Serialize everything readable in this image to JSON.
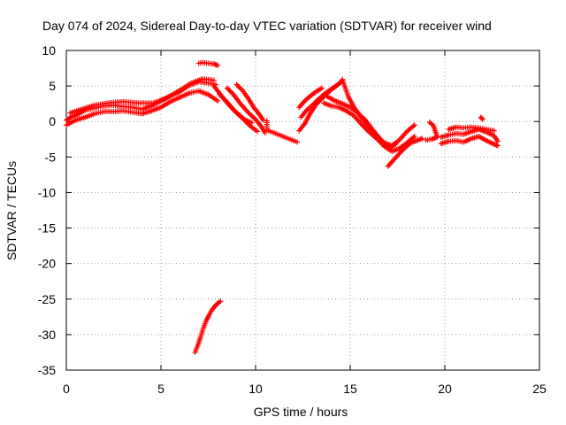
{
  "chart_data": {
    "type": "scatter",
    "title": "Day 074 of 2024, Sidereal Day-to-day VTEC variation (SDTVAR) for receiver wind",
    "xlabel": "GPS time / hours",
    "ylabel": "SDTVAR / TECUs",
    "xlim": [
      0,
      25
    ],
    "ylim": [
      -35,
      10
    ],
    "xticks": [
      "0",
      "5",
      "10",
      "15",
      "20",
      "25"
    ],
    "yticks": [
      "10",
      "5",
      "0",
      "-5",
      "-10",
      "-15",
      "-20",
      "-25",
      "-30",
      "-35"
    ],
    "grid": true,
    "marker": "+",
    "color": "#ff0000",
    "segments": [
      {
        "name": "early-main",
        "points": [
          [
            0.0,
            0.2
          ],
          [
            0.3,
            0.7
          ],
          [
            0.6,
            1.0
          ],
          [
            1.0,
            1.6
          ],
          [
            1.5,
            1.9
          ],
          [
            2.0,
            2.2
          ],
          [
            2.5,
            2.3
          ],
          [
            3.0,
            2.1
          ],
          [
            3.5,
            2.0
          ],
          [
            4.0,
            1.7
          ],
          [
            4.5,
            2.2
          ],
          [
            5.0,
            2.9
          ],
          [
            5.5,
            3.6
          ],
          [
            6.0,
            4.2
          ],
          [
            6.5,
            5.1
          ],
          [
            7.0,
            5.6
          ],
          [
            7.5,
            5.4
          ],
          [
            7.9,
            5.2
          ]
        ]
      },
      {
        "name": "early-lower",
        "points": [
          [
            0.0,
            -0.5
          ],
          [
            0.5,
            0.2
          ],
          [
            1.0,
            0.6
          ],
          [
            1.5,
            1.1
          ],
          [
            2.0,
            1.4
          ],
          [
            2.5,
            1.4
          ],
          [
            3.0,
            1.5
          ],
          [
            3.5,
            1.3
          ],
          [
            4.0,
            1.1
          ],
          [
            4.5,
            1.5
          ],
          [
            5.0,
            2.0
          ],
          [
            5.5,
            2.8
          ],
          [
            6.0,
            3.4
          ],
          [
            6.5,
            4.0
          ],
          [
            7.0,
            4.3
          ],
          [
            7.5,
            3.8
          ],
          [
            8.0,
            2.9
          ]
        ]
      },
      {
        "name": "early-upper",
        "points": [
          [
            0.2,
            1.2
          ],
          [
            0.8,
            1.7
          ],
          [
            1.5,
            2.3
          ],
          [
            2.2,
            2.6
          ],
          [
            3.0,
            2.8
          ],
          [
            3.8,
            2.6
          ],
          [
            4.6,
            2.6
          ],
          [
            5.3,
            3.3
          ],
          [
            6.0,
            4.4
          ],
          [
            6.6,
            5.4
          ],
          [
            7.2,
            6.0
          ],
          [
            7.8,
            5.8
          ]
        ]
      },
      {
        "name": "high-blip",
        "points": [
          [
            7.0,
            8.2
          ],
          [
            7.2,
            8.3
          ],
          [
            7.5,
            8.2
          ],
          [
            7.8,
            8.1
          ],
          [
            8.0,
            7.9
          ]
        ]
      },
      {
        "name": "descent-a",
        "points": [
          [
            7.8,
            5.0
          ],
          [
            8.2,
            3.6
          ],
          [
            8.6,
            2.3
          ],
          [
            9.0,
            1.2
          ],
          [
            9.4,
            0.3
          ],
          [
            9.8,
            -0.2
          ]
        ]
      },
      {
        "name": "descent-b",
        "points": [
          [
            8.1,
            3.8
          ],
          [
            8.5,
            2.7
          ],
          [
            8.9,
            1.5
          ],
          [
            9.3,
            0.5
          ],
          [
            9.7,
            -0.6
          ],
          [
            10.1,
            -1.4
          ]
        ]
      },
      {
        "name": "descent-c",
        "points": [
          [
            8.5,
            4.7
          ],
          [
            8.8,
            3.9
          ],
          [
            9.2,
            2.5
          ],
          [
            9.6,
            1.3
          ],
          [
            10.0,
            0.3
          ],
          [
            10.3,
            -0.7
          ],
          [
            10.5,
            -1.6
          ]
        ]
      },
      {
        "name": "descent-d",
        "points": [
          [
            9.0,
            5.2
          ],
          [
            9.3,
            4.4
          ],
          [
            9.6,
            3.3
          ],
          [
            9.9,
            2.0
          ],
          [
            10.2,
            1.0
          ],
          [
            10.4,
            0.2
          ]
        ]
      },
      {
        "name": "negative-branch",
        "points": [
          [
            6.8,
            -32.5
          ],
          [
            6.95,
            -31.5
          ],
          [
            7.1,
            -30.3
          ],
          [
            7.25,
            -29.0
          ],
          [
            7.4,
            -28.0
          ],
          [
            7.55,
            -27.2
          ],
          [
            7.7,
            -26.5
          ],
          [
            7.85,
            -26.0
          ],
          [
            8.0,
            -25.6
          ],
          [
            8.15,
            -25.3
          ]
        ]
      },
      {
        "name": "isolated",
        "points": [
          [
            10.6,
            0.1
          ],
          [
            10.6,
            -1.2
          ],
          [
            12.2,
            -2.9
          ]
        ]
      },
      {
        "name": "second-rise-a",
        "points": [
          [
            12.3,
            -1.3
          ],
          [
            12.6,
            -0.3
          ],
          [
            12.9,
            1.2
          ],
          [
            13.2,
            2.4
          ],
          [
            13.5,
            3.2
          ],
          [
            13.8,
            4.0
          ],
          [
            14.1,
            4.7
          ],
          [
            14.4,
            5.3
          ],
          [
            14.6,
            5.9
          ]
        ]
      },
      {
        "name": "second-rise-b",
        "points": [
          [
            12.4,
            0.6
          ],
          [
            12.7,
            1.6
          ],
          [
            13.0,
            2.3
          ],
          [
            13.3,
            3.1
          ],
          [
            13.6,
            3.8
          ],
          [
            13.9,
            4.4
          ],
          [
            14.2,
            4.9
          ],
          [
            14.5,
            5.5
          ]
        ]
      },
      {
        "name": "second-rise-c",
        "points": [
          [
            12.3,
            2.0
          ],
          [
            12.6,
            2.9
          ],
          [
            12.9,
            3.6
          ],
          [
            13.2,
            4.2
          ],
          [
            13.5,
            4.7
          ]
        ]
      },
      {
        "name": "second-descent-a",
        "points": [
          [
            14.6,
            5.8
          ],
          [
            14.9,
            3.5
          ],
          [
            15.2,
            2.0
          ],
          [
            15.6,
            0.5
          ],
          [
            16.0,
            -0.8
          ],
          [
            16.4,
            -2.0
          ],
          [
            16.8,
            -3.0
          ],
          [
            17.2,
            -3.4
          ],
          [
            17.6,
            -2.6
          ],
          [
            18.0,
            -1.4
          ],
          [
            18.4,
            -0.5
          ]
        ]
      },
      {
        "name": "second-descent-b",
        "points": [
          [
            13.6,
            2.6
          ],
          [
            14.0,
            2.2
          ],
          [
            14.4,
            2.0
          ],
          [
            14.8,
            1.5
          ],
          [
            15.2,
            0.8
          ],
          [
            15.6,
            -0.4
          ],
          [
            16.0,
            -1.5
          ],
          [
            16.4,
            -2.4
          ],
          [
            16.8,
            -3.5
          ],
          [
            17.2,
            -4.2
          ],
          [
            17.6,
            -3.8
          ],
          [
            18.0,
            -3.0
          ],
          [
            18.4,
            -2.1
          ]
        ]
      },
      {
        "name": "second-descent-c",
        "points": [
          [
            13.8,
            3.5
          ],
          [
            14.2,
            2.9
          ],
          [
            14.6,
            2.5
          ],
          [
            15.0,
            2.0
          ],
          [
            15.4,
            1.2
          ],
          [
            15.8,
            0.2
          ],
          [
            16.2,
            -1.2
          ],
          [
            16.6,
            -2.5
          ],
          [
            17.0,
            -3.8
          ],
          [
            17.4,
            -3.2
          ]
        ]
      },
      {
        "name": "low-dip",
        "points": [
          [
            17.0,
            -6.3
          ],
          [
            17.3,
            -5.4
          ],
          [
            17.6,
            -4.5
          ],
          [
            17.9,
            -3.7
          ],
          [
            18.2,
            -3.0
          ],
          [
            18.5,
            -2.7
          ],
          [
            18.8,
            -2.4
          ]
        ]
      },
      {
        "name": "mid-gap",
        "points": [
          [
            19.2,
            -0.1
          ],
          [
            19.4,
            -0.6
          ],
          [
            19.6,
            -2.2
          ],
          [
            19.3,
            -2.5
          ],
          [
            19.0,
            -2.6
          ]
        ]
      },
      {
        "name": "tail-a",
        "points": [
          [
            19.8,
            -2.2
          ],
          [
            20.2,
            -1.9
          ],
          [
            20.6,
            -1.7
          ],
          [
            21.0,
            -1.8
          ],
          [
            21.4,
            -1.4
          ],
          [
            21.8,
            -1.1
          ],
          [
            22.2,
            -1.5
          ],
          [
            22.6,
            -2.0
          ],
          [
            22.8,
            -2.8
          ]
        ]
      },
      {
        "name": "tail-b",
        "points": [
          [
            19.8,
            -3.1
          ],
          [
            20.2,
            -2.8
          ],
          [
            20.6,
            -2.7
          ],
          [
            21.0,
            -2.9
          ],
          [
            21.4,
            -2.4
          ],
          [
            21.8,
            -2.1
          ],
          [
            22.2,
            -2.7
          ],
          [
            22.6,
            -3.2
          ],
          [
            22.8,
            -3.4
          ]
        ]
      },
      {
        "name": "tail-c",
        "points": [
          [
            20.2,
            -1.1
          ],
          [
            20.6,
            -0.8
          ],
          [
            21.0,
            -0.9
          ],
          [
            21.4,
            -0.8
          ],
          [
            21.8,
            -0.9
          ],
          [
            22.2,
            -1.1
          ],
          [
            22.6,
            -1.3
          ]
        ]
      },
      {
        "name": "tail-blip",
        "points": [
          [
            21.9,
            0.6
          ],
          [
            22.0,
            0.3
          ]
        ]
      }
    ]
  }
}
